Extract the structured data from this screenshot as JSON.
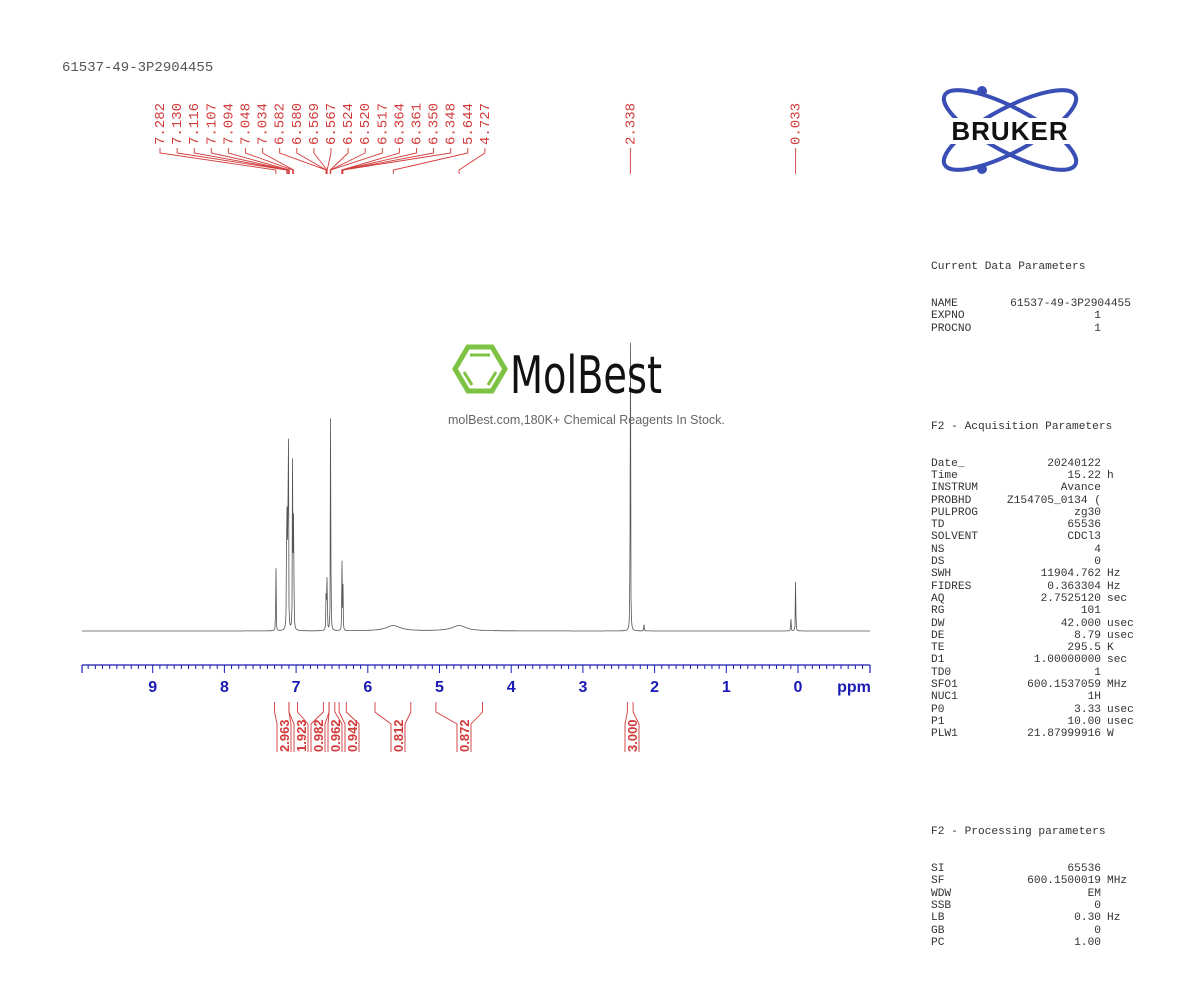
{
  "header": {
    "sample_id": "61537-49-3P2904455"
  },
  "watermark": {
    "brand": "MolBest",
    "tagline": "molBest.com,180K+ Chemical Reagents In Stock."
  },
  "logo": {
    "text": "BRUKER",
    "ring_color": "#3a4fb5"
  },
  "colors": {
    "peak_labels": "#d23a3a",
    "axis": "#1a1ab4",
    "spectrum": "#555555",
    "molbest_green": "#7dc242"
  },
  "parameters": {
    "current": {
      "title": "Current Data Parameters",
      "rows": [
        {
          "k": "NAME",
          "v": "61537-49-3P2904455",
          "u": ""
        },
        {
          "k": "EXPNO",
          "v": "1",
          "u": ""
        },
        {
          "k": "PROCNO",
          "v": "1",
          "u": ""
        }
      ]
    },
    "acquisition": {
      "title": "F2 - Acquisition Parameters",
      "rows": [
        {
          "k": "Date_",
          "v": "20240122",
          "u": ""
        },
        {
          "k": "Time",
          "v": "15.22",
          "u": "h"
        },
        {
          "k": "INSTRUM",
          "v": "Avance",
          "u": ""
        },
        {
          "k": "PROBHD",
          "v": "Z154705_0134 (",
          "u": ""
        },
        {
          "k": "PULPROG",
          "v": "zg30",
          "u": ""
        },
        {
          "k": "TD",
          "v": "65536",
          "u": ""
        },
        {
          "k": "SOLVENT",
          "v": "CDCl3",
          "u": ""
        },
        {
          "k": "NS",
          "v": "4",
          "u": ""
        },
        {
          "k": "DS",
          "v": "0",
          "u": ""
        },
        {
          "k": "SWH",
          "v": "11904.762",
          "u": "Hz"
        },
        {
          "k": "FIDRES",
          "v": "0.363304",
          "u": "Hz"
        },
        {
          "k": "AQ",
          "v": "2.7525120",
          "u": "sec"
        },
        {
          "k": "RG",
          "v": "101",
          "u": ""
        },
        {
          "k": "DW",
          "v": "42.000",
          "u": "usec"
        },
        {
          "k": "DE",
          "v": "8.79",
          "u": "usec"
        },
        {
          "k": "TE",
          "v": "295.5",
          "u": "K"
        },
        {
          "k": "D1",
          "v": "1.00000000",
          "u": "sec"
        },
        {
          "k": "TD0",
          "v": "1",
          "u": ""
        },
        {
          "k": "SFO1",
          "v": "600.1537059",
          "u": "MHz"
        },
        {
          "k": "NUC1",
          "v": "1H",
          "u": ""
        },
        {
          "k": "P0",
          "v": "3.33",
          "u": "usec"
        },
        {
          "k": "P1",
          "v": "10.00",
          "u": "usec"
        },
        {
          "k": "PLW1",
          "v": "21.87999916",
          "u": "W"
        }
      ]
    },
    "processing": {
      "title": "F2 - Processing parameters",
      "rows": [
        {
          "k": "SI",
          "v": "65536",
          "u": ""
        },
        {
          "k": "SF",
          "v": "600.1500019",
          "u": "MHz"
        },
        {
          "k": "WDW",
          "v": "EM",
          "u": ""
        },
        {
          "k": "SSB",
          "v": "0",
          "u": ""
        },
        {
          "k": "LB",
          "v": "0.30",
          "u": "Hz"
        },
        {
          "k": "GB",
          "v": "0",
          "u": ""
        },
        {
          "k": "PC",
          "v": "1.00",
          "u": ""
        }
      ]
    }
  },
  "chart_data": {
    "type": "line",
    "title": "61537-49-3P2904455",
    "xlabel": "ppm",
    "ylabel": "",
    "xlim": [
      10.0,
      -1.0
    ],
    "x_ticks": [
      9,
      8,
      7,
      6,
      5,
      4,
      3,
      2,
      1,
      0
    ],
    "grid": false,
    "peak_labels": [
      7.282,
      7.13,
      7.116,
      7.107,
      7.094,
      7.048,
      7.034,
      6.582,
      6.58,
      6.569,
      6.567,
      6.524,
      6.52,
      6.517,
      6.364,
      6.361,
      6.35,
      6.348,
      5.644,
      4.727,
      2.338,
      0.033
    ],
    "peaks": [
      {
        "ppm": 7.282,
        "height": 0.2
      },
      {
        "ppm": 7.13,
        "height": 0.61
      },
      {
        "ppm": 7.116,
        "height": 0.52
      },
      {
        "ppm": 7.107,
        "height": 0.45
      },
      {
        "ppm": 7.048,
        "height": 0.66
      },
      {
        "ppm": 7.034,
        "height": 0.42
      },
      {
        "ppm": 6.58,
        "height": 0.19
      },
      {
        "ppm": 6.567,
        "height": 0.18
      },
      {
        "ppm": 6.52,
        "height": 0.36
      },
      {
        "ppm": 6.517,
        "height": 0.3
      },
      {
        "ppm": 6.361,
        "height": 0.18
      },
      {
        "ppm": 6.348,
        "height": 0.17
      },
      {
        "ppm": 5.644,
        "height": 0.012,
        "broad": true
      },
      {
        "ppm": 4.727,
        "height": 0.012,
        "broad": true
      },
      {
        "ppm": 2.338,
        "height": 1.0
      },
      {
        "ppm": 2.15,
        "height": 0.025
      },
      {
        "ppm": 0.1,
        "height": 0.05
      },
      {
        "ppm": 0.033,
        "height": 0.17
      }
    ],
    "integrals": [
      {
        "value": "2.963",
        "from": 7.3,
        "to": 7.1
      },
      {
        "value": "1.923",
        "from": 7.1,
        "to": 6.98
      },
      {
        "value": "0.982",
        "from": 6.62,
        "to": 6.54
      },
      {
        "value": "0.962",
        "from": 6.54,
        "to": 6.46
      },
      {
        "value": "0.942",
        "from": 6.4,
        "to": 6.3
      },
      {
        "value": "0.812",
        "from": 5.9,
        "to": 5.4
      },
      {
        "value": "0.872",
        "from": 5.05,
        "to": 4.4
      },
      {
        "value": "3.000",
        "from": 2.38,
        "to": 2.3
      }
    ]
  }
}
